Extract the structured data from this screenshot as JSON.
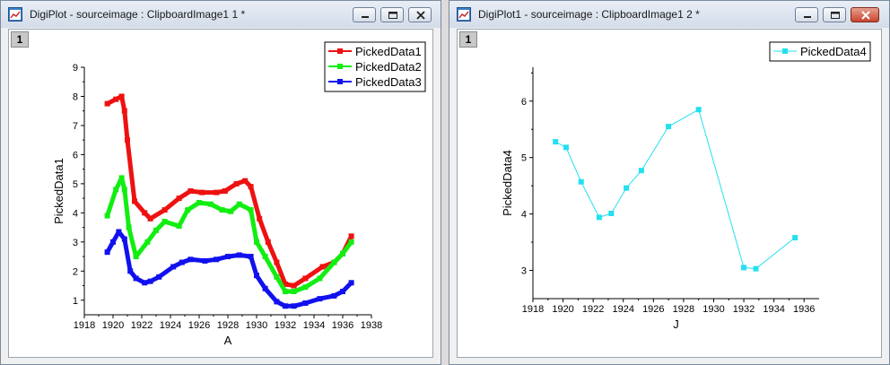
{
  "windows": [
    {
      "title": "DigiPlot - sourceimage : ClipboardImage1 1 *",
      "layer": "1",
      "close_style": "normal",
      "chart": {
        "type": "line",
        "xlabel": "A",
        "ylabel": "PickedData1",
        "xlim": [
          1918,
          1938
        ],
        "ylim": [
          0.5,
          9
        ],
        "xticks": [
          "1918",
          "1920",
          "1922",
          "1924",
          "1926",
          "1928",
          "1930",
          "1932",
          "1934",
          "1936",
          "1938"
        ],
        "yticks": [
          "1",
          "2",
          "3",
          "4",
          "5",
          "6",
          "7",
          "8",
          "9"
        ],
        "legend_position": "top-right",
        "series": [
          {
            "name": "PickedData1",
            "color": "#ee1111",
            "x": [
              1919.6,
              1920.2,
              1920.6,
              1920.8,
              1921.0,
              1921.5,
              1922.2,
              1922.6,
              1923.6,
              1924.6,
              1925.4,
              1926.2,
              1927.2,
              1927.8,
              1928.6,
              1929.2,
              1929.6,
              1930.2,
              1930.8,
              1931.4,
              1932.0,
              1932.6,
              1933.4,
              1934.6,
              1935.4,
              1936.0,
              1936.6
            ],
            "y": [
              7.75,
              7.9,
              8.0,
              7.5,
              6.5,
              4.4,
              4.0,
              3.8,
              4.1,
              4.5,
              4.75,
              4.7,
              4.7,
              4.75,
              5.0,
              5.1,
              4.9,
              3.8,
              3.0,
              2.3,
              1.55,
              1.5,
              1.75,
              2.15,
              2.3,
              2.6,
              3.2
            ]
          },
          {
            "name": "PickedData2",
            "color": "#11ee11",
            "x": [
              1919.6,
              1920.2,
              1920.6,
              1920.8,
              1921.1,
              1921.6,
              1922.4,
              1923.0,
              1923.6,
              1924.6,
              1925.2,
              1926.0,
              1926.8,
              1927.6,
              1928.2,
              1928.8,
              1929.6,
              1930.0,
              1930.6,
              1931.4,
              1932.0,
              1932.6,
              1933.4,
              1934.4,
              1935.4,
              1936.0,
              1936.6
            ],
            "y": [
              3.9,
              4.8,
              5.2,
              4.8,
              3.5,
              2.5,
              3.0,
              3.4,
              3.7,
              3.55,
              4.1,
              4.35,
              4.3,
              4.1,
              4.05,
              4.3,
              4.1,
              3.0,
              2.5,
              1.8,
              1.3,
              1.3,
              1.45,
              1.75,
              2.3,
              2.6,
              3.0
            ]
          },
          {
            "name": "PickedData3",
            "color": "#1111ee",
            "x": [
              1919.6,
              1920.0,
              1920.4,
              1920.8,
              1921.2,
              1921.6,
              1922.2,
              1922.6,
              1923.2,
              1924.2,
              1924.8,
              1925.4,
              1926.4,
              1927.2,
              1928.0,
              1928.8,
              1929.6,
              1930.0,
              1930.6,
              1931.4,
              1932.0,
              1932.6,
              1933.4,
              1934.4,
              1935.4,
              1936.0,
              1936.6
            ],
            "y": [
              2.65,
              3.0,
              3.35,
              3.1,
              2.0,
              1.75,
              1.6,
              1.65,
              1.8,
              2.15,
              2.3,
              2.4,
              2.35,
              2.4,
              2.5,
              2.55,
              2.5,
              1.85,
              1.4,
              0.95,
              0.8,
              0.8,
              0.9,
              1.05,
              1.15,
              1.3,
              1.6
            ]
          }
        ]
      }
    },
    {
      "title": "DigiPlot1 - sourceimage : ClipboardImage1 2 *",
      "layer": "1",
      "close_style": "red",
      "chart": {
        "type": "line",
        "xlabel": "J",
        "ylabel": "PickedData4",
        "xlim": [
          1918,
          1937
        ],
        "ylim": [
          2.5,
          6.6
        ],
        "xticks": [
          "1918",
          "1920",
          "1922",
          "1924",
          "1926",
          "1928",
          "1930",
          "1932",
          "1934",
          "1936"
        ],
        "yticks": [
          "3",
          "4",
          "5",
          "6"
        ],
        "legend_position": "top-right",
        "series": [
          {
            "name": "PickedData4",
            "color": "#22e0f0",
            "x": [
              1919.5,
              1920.2,
              1921.2,
              1922.4,
              1923.2,
              1924.2,
              1925.2,
              1927.0,
              1929.0,
              1932.0,
              1932.8,
              1935.4
            ],
            "y": [
              5.28,
              5.18,
              4.57,
              3.94,
              4.01,
              4.46,
              4.77,
              5.55,
              5.85,
              3.05,
              3.03,
              3.58
            ]
          }
        ]
      }
    }
  ]
}
